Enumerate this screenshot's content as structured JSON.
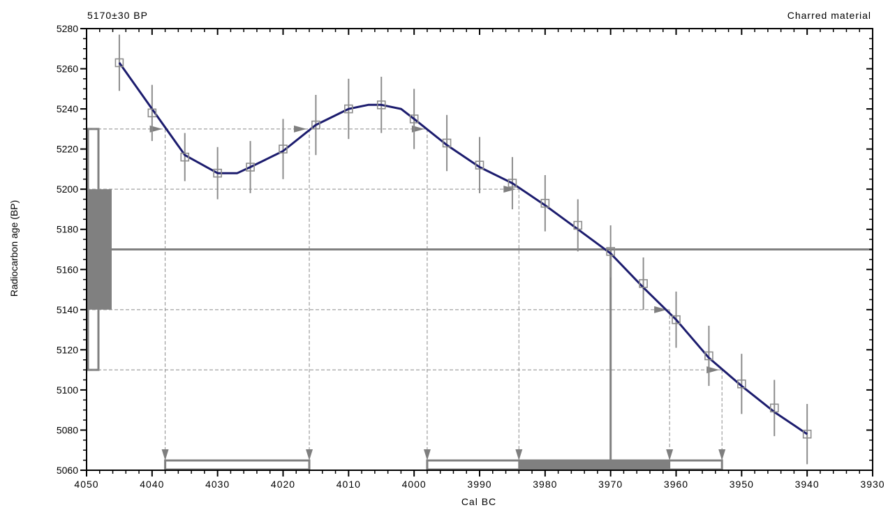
{
  "chart_data": {
    "type": "line",
    "header_left": "5170±30 BP",
    "header_right": "Charred material",
    "xlabel": "Cal BC",
    "ylabel": "Radiocarbon age (BP)",
    "x_reversed": true,
    "xlim": [
      4050,
      3930
    ],
    "ylim": [
      5060,
      5280
    ],
    "x_ticks": [
      4050,
      4040,
      4030,
      4020,
      4010,
      4000,
      3990,
      3980,
      3970,
      3960,
      3950,
      3940,
      3930
    ],
    "y_ticks": [
      5060,
      5080,
      5100,
      5120,
      5140,
      5160,
      5180,
      5200,
      5220,
      5240,
      5260,
      5280
    ],
    "grid": false,
    "curve": {
      "name": "",
      "color": "#1c1c6e",
      "x": [
        4045,
        4040,
        4035,
        4030,
        4027,
        4025,
        4020,
        4015,
        4010,
        4007,
        4005,
        4002,
        4000,
        3995,
        3990,
        3985,
        3980,
        3975,
        3970,
        3965,
        3960,
        3955,
        3950,
        3945,
        3940
      ],
      "y": [
        5263,
        5240,
        5217,
        5208,
        5208,
        5211,
        5219,
        5232,
        5240,
        5242,
        5242,
        5240,
        5235,
        5222,
        5211,
        5203,
        5192,
        5180,
        5168,
        5151,
        5135,
        5116,
        5102,
        5089,
        5078
      ]
    },
    "data_points": {
      "color": "#888888",
      "x": [
        4045,
        4040,
        4035,
        4030,
        4025,
        4020,
        4015,
        4010,
        4005,
        4000,
        3995,
        3990,
        3985,
        3980,
        3975,
        3970,
        3965,
        3960,
        3955,
        3950,
        3945,
        3940
      ],
      "y": [
        5263,
        5238,
        5216,
        5208,
        5211,
        5220,
        5232,
        5240,
        5242,
        5235,
        5223,
        5212,
        5203,
        5193,
        5182,
        5169,
        5153,
        5135,
        5117,
        5103,
        5091,
        5078
      ],
      "err": [
        14,
        14,
        12,
        13,
        13,
        15,
        15,
        15,
        14,
        15,
        14,
        14,
        13,
        14,
        13,
        13,
        13,
        14,
        15,
        15,
        14,
        15
      ]
    },
    "measurement": {
      "age": 5170,
      "error": 30,
      "sigma1": [
        5140,
        5200
      ],
      "sigma2": [
        5110,
        5230
      ],
      "color": "#808080"
    },
    "intercept_drop": {
      "x": 3970
    },
    "projection_lines": [
      {
        "y": 5230,
        "arrows_x": [
          4038,
          4016,
          3998
        ],
        "drops_x": [
          4038,
          4016,
          3998
        ]
      },
      {
        "y": 5200,
        "arrows_x": [
          3984
        ],
        "drops_x": [
          3984
        ]
      },
      {
        "y": 5140,
        "arrows_x": [
          3961
        ],
        "drops_x": [
          3961
        ]
      },
      {
        "y": 5110,
        "arrows_x": [
          3953
        ],
        "drops_x": [
          3953
        ]
      }
    ],
    "calibrated_ranges": {
      "two_sigma": [
        [
          4038,
          4016
        ],
        [
          3998,
          3953
        ]
      ],
      "one_sigma": [
        [
          3984,
          3961
        ]
      ]
    }
  }
}
